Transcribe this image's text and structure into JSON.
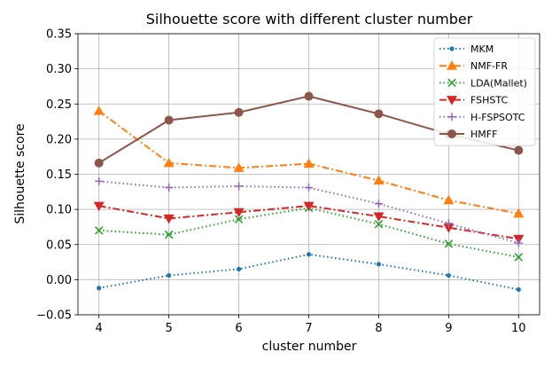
{
  "chart_data": {
    "type": "line",
    "title": "Silhouette score with different cluster number",
    "xlabel": "cluster number",
    "ylabel": "Silhouette score",
    "x": [
      4,
      5,
      6,
      7,
      8,
      9,
      10
    ],
    "xticks": [
      "4",
      "5",
      "6",
      "7",
      "8",
      "9",
      "10"
    ],
    "yticks": [
      "−0.05",
      "0.00",
      "0.05",
      "0.10",
      "0.15",
      "0.20",
      "0.25",
      "0.30",
      "0.35"
    ],
    "ylim": [
      -0.05,
      0.35
    ],
    "grid": true,
    "legend_position": "top-right",
    "series": [
      {
        "name": "MKM",
        "color": "#1f77b4",
        "marker": "dot",
        "linestyle": "dotted",
        "values": [
          -0.012,
          0.006,
          0.015,
          0.036,
          0.022,
          0.006,
          -0.014
        ]
      },
      {
        "name": "NMF-FR",
        "color": "#ff7f0e",
        "marker": "triangle-up",
        "linestyle": "dashdot",
        "values": [
          0.24,
          0.166,
          0.159,
          0.165,
          0.141,
          0.113,
          0.094
        ]
      },
      {
        "name": "LDA(Mallet)",
        "color": "#2ca02c",
        "marker": "x",
        "linestyle": "dotted",
        "values": [
          0.07,
          0.064,
          0.086,
          0.102,
          0.079,
          0.051,
          0.032
        ]
      },
      {
        "name": "FSHSTC",
        "color": "#d62728",
        "marker": "triangle-down",
        "linestyle": "dashdot",
        "values": [
          0.105,
          0.087,
          0.096,
          0.105,
          0.09,
          0.074,
          0.058
        ]
      },
      {
        "name": "H-FSPSOTC",
        "color": "#9467bd",
        "marker": "plus",
        "linestyle": "dotted",
        "values": [
          0.14,
          0.131,
          0.133,
          0.131,
          0.108,
          0.08,
          0.052
        ]
      },
      {
        "name": "HMFF",
        "color": "#8c564b",
        "marker": "circle",
        "linestyle": "solid",
        "values": [
          0.166,
          0.227,
          0.238,
          0.261,
          0.236,
          0.207,
          0.184
        ]
      }
    ]
  }
}
